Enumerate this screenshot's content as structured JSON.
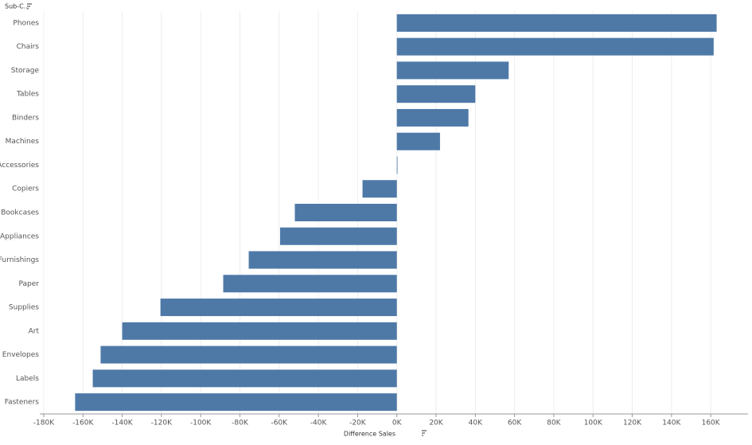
{
  "chart_data": {
    "type": "bar",
    "orientation": "horizontal",
    "y_header": "Sub-C..",
    "x_label": "Difference Sales",
    "categories": [
      "Phones",
      "Chairs",
      "Storage",
      "Tables",
      "Binders",
      "Machines",
      "Accessories",
      "Copiers",
      "Bookcases",
      "Appliances",
      "Furnishings",
      "Paper",
      "Supplies",
      "Art",
      "Envelopes",
      "Labels",
      "Fasteners"
    ],
    "values": [
      163000,
      161500,
      57000,
      40000,
      36500,
      22000,
      300,
      -17500,
      -52000,
      -59500,
      -75500,
      -88500,
      -120500,
      -140000,
      -151000,
      -155000,
      -164000
    ],
    "color": "#4e79a7",
    "xlim": [
      -182000,
      179000
    ],
    "xticks": [
      {
        "value": -180000,
        "label": "-180K"
      },
      {
        "value": -160000,
        "label": "-160K"
      },
      {
        "value": -140000,
        "label": "-140K"
      },
      {
        "value": -120000,
        "label": "-120K"
      },
      {
        "value": -100000,
        "label": "-100K"
      },
      {
        "value": -80000,
        "label": "-80K"
      },
      {
        "value": -60000,
        "label": "-60K"
      },
      {
        "value": -40000,
        "label": "-40K"
      },
      {
        "value": -20000,
        "label": "-20K"
      },
      {
        "value": 0,
        "label": "0K"
      },
      {
        "value": 20000,
        "label": "20K"
      },
      {
        "value": 40000,
        "label": "40K"
      },
      {
        "value": 60000,
        "label": "60K"
      },
      {
        "value": 80000,
        "label": "80K"
      },
      {
        "value": 100000,
        "label": "100K"
      },
      {
        "value": 120000,
        "label": "120K"
      },
      {
        "value": 140000,
        "label": "140K"
      },
      {
        "value": 160000,
        "label": "160K"
      }
    ],
    "grid": true
  }
}
